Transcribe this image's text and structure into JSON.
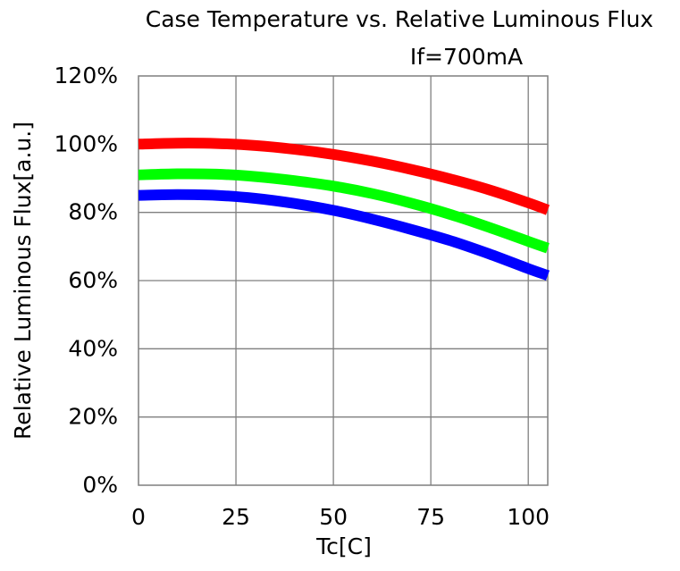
{
  "chart_data": {
    "type": "line",
    "title": "Case Temperature vs. Relative Luminous Flux",
    "subtitle": "If=700mA",
    "xlabel": "Tc[C]",
    "ylabel": "Relative Luminous Flux[a.u.]",
    "xlim": [
      0,
      105
    ],
    "ylim": [
      0,
      120
    ],
    "x_ticks": [
      0,
      25,
      50,
      75,
      100
    ],
    "y_ticks": [
      0,
      20,
      40,
      60,
      80,
      100,
      120
    ],
    "x_tick_labels": [
      "0",
      "25",
      "50",
      "75",
      "100"
    ],
    "y_tick_labels": [
      "0%",
      "20%",
      "40%",
      "60%",
      "80%",
      "100%",
      "120%"
    ],
    "grid": true,
    "legend": "none",
    "series": [
      {
        "color": "#ff0000",
        "points": [
          [
            0,
            100
          ],
          [
            10,
            100.3
          ],
          [
            20,
            100.2
          ],
          [
            30,
            99.6
          ],
          [
            40,
            98.5
          ],
          [
            50,
            97
          ],
          [
            60,
            95
          ],
          [
            70,
            92.6
          ],
          [
            80,
            89.8
          ],
          [
            90,
            86.6
          ],
          [
            100,
            82.8
          ],
          [
            105,
            80.7
          ]
        ]
      },
      {
        "color": "#00ff00",
        "points": [
          [
            0,
            91
          ],
          [
            10,
            91.3
          ],
          [
            20,
            91.2
          ],
          [
            30,
            90.5
          ],
          [
            40,
            89.3
          ],
          [
            50,
            87.7
          ],
          [
            60,
            85.5
          ],
          [
            70,
            82.7
          ],
          [
            80,
            79.4
          ],
          [
            90,
            75.6
          ],
          [
            100,
            71.5
          ],
          [
            105,
            69.5
          ]
        ]
      },
      {
        "color": "#0000ff",
        "points": [
          [
            0,
            85
          ],
          [
            10,
            85.2
          ],
          [
            20,
            85
          ],
          [
            30,
            84.1
          ],
          [
            40,
            82.6
          ],
          [
            50,
            80.6
          ],
          [
            60,
            78
          ],
          [
            70,
            75
          ],
          [
            80,
            71.7
          ],
          [
            90,
            67.8
          ],
          [
            100,
            63.5
          ],
          [
            105,
            61.5
          ]
        ]
      }
    ]
  }
}
